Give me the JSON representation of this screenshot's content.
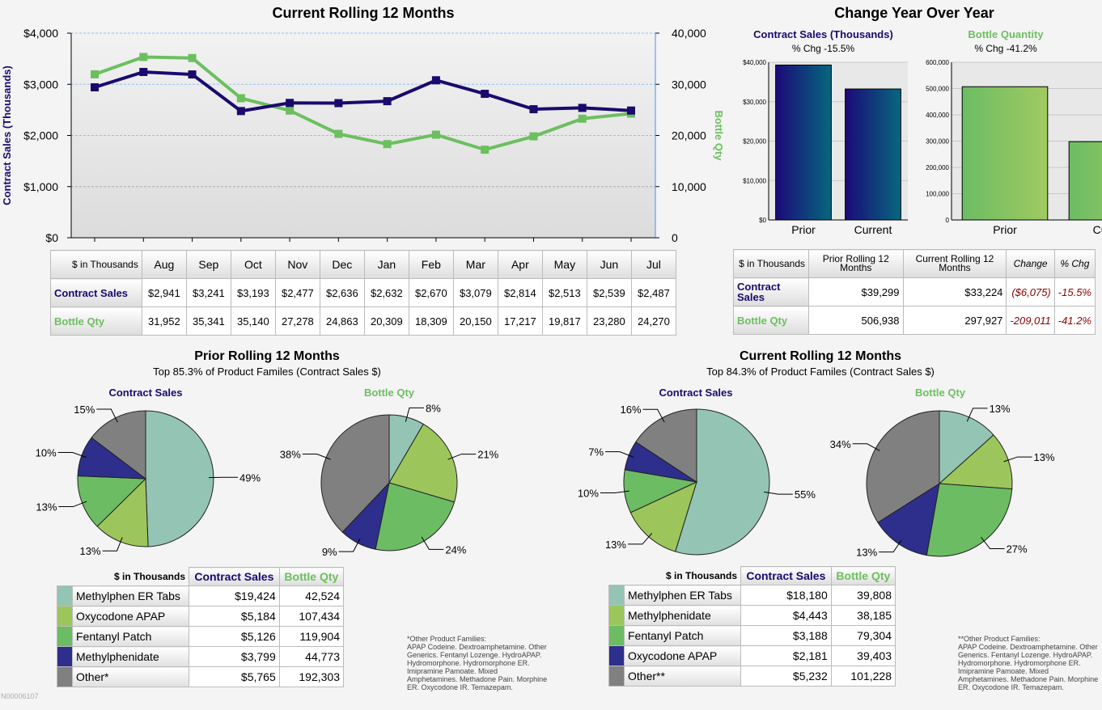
{
  "colors": {
    "contract": "#1a0a6e",
    "bottle": "#6cbf5f"
  },
  "rolling": {
    "title": "Current Rolling 12 Months",
    "ylabel_left": "Contract Sales (Thousands)",
    "ylabel_right": "Bottle Qty",
    "table_header": "$ in Thousands",
    "row1": "Contract Sales",
    "row2": "Bottle Qty",
    "months": [
      "Aug",
      "Sep",
      "Oct",
      "Nov",
      "Dec",
      "Jan",
      "Feb",
      "Mar",
      "Apr",
      "May",
      "Jun",
      "Jul"
    ],
    "contract_fmt": [
      "$2,941",
      "$3,241",
      "$3,193",
      "$2,477",
      "$2,636",
      "$2,632",
      "$2,670",
      "$3,079",
      "$2,814",
      "$2,513",
      "$2,539",
      "$2,487"
    ],
    "bottle_fmt": [
      "31,952",
      "35,341",
      "35,140",
      "27,278",
      "24,863",
      "20,309",
      "18,309",
      "20,150",
      "17,217",
      "19,817",
      "23,280",
      "24,270"
    ]
  },
  "chart_data": [
    {
      "type": "line",
      "title": "Current Rolling 12 Months",
      "x": [
        "Aug",
        "Sep",
        "Oct",
        "Nov",
        "Dec",
        "Jan",
        "Feb",
        "Mar",
        "Apr",
        "May",
        "Jun",
        "Jul"
      ],
      "ylabel": "Contract Sales (Thousands)",
      "y2label": "Bottle Qty",
      "ylim": [
        0,
        4000
      ],
      "y2lim": [
        0,
        40000
      ],
      "yticks": [
        "$0",
        "$1,000",
        "$2,000",
        "$3,000",
        "$4,000"
      ],
      "y2ticks": [
        "0",
        "10,000",
        "20,000",
        "30,000",
        "40,000"
      ],
      "grid": true,
      "series": [
        {
          "name": "Contract Sales",
          "axis": "left",
          "color": "#1a0a6e",
          "values": [
            2941,
            3241,
            3193,
            2477,
            2636,
            2632,
            2670,
            3079,
            2814,
            2513,
            2539,
            2487
          ]
        },
        {
          "name": "Bottle Qty",
          "axis": "right",
          "color": "#6cbf5f",
          "values": [
            31952,
            35341,
            35140,
            27278,
            24863,
            20309,
            18309,
            20150,
            17217,
            19817,
            23280,
            24270
          ]
        }
      ]
    },
    {
      "type": "bar",
      "title": "Contract Sales (Thousands)",
      "subtitle": "% Chg -15.5%",
      "categories": [
        "Prior",
        "Current"
      ],
      "values": [
        39299,
        33224
      ],
      "ylim": [
        0,
        40000
      ],
      "yticks": [
        "$0",
        "$10,000",
        "$20,000",
        "$30,000",
        "$40,000"
      ]
    },
    {
      "type": "bar",
      "title": "Bottle Quantity",
      "subtitle": "% Chg -41.2%",
      "categories": [
        "Prior",
        "Current"
      ],
      "values": [
        506938,
        297927
      ],
      "ylim": [
        0,
        600000
      ],
      "yticks": [
        "0",
        "100,000",
        "200,000",
        "300,000",
        "400,000",
        "500,000",
        "600,000"
      ]
    },
    {
      "type": "pie",
      "title": "Contract Sales",
      "group": "Prior Rolling 12 Months",
      "labels": [
        "Methylphen ER Tabs",
        "Oxycodone APAP",
        "Fentanyl Patch",
        "Methylphenidate",
        "Other*"
      ],
      "values": [
        19424,
        5184,
        5126,
        3799,
        5765
      ],
      "pct": [
        "49%",
        "13%",
        "13%",
        "10%",
        "15%"
      ]
    },
    {
      "type": "pie",
      "title": "Bottle Qty",
      "group": "Prior Rolling 12 Months",
      "labels": [
        "Methylphen ER Tabs",
        "Oxycodone APAP",
        "Fentanyl Patch",
        "Methylphenidate",
        "Other*"
      ],
      "values": [
        42524,
        107434,
        119904,
        44773,
        192303
      ],
      "pct": [
        "8%",
        "21%",
        "24%",
        "9%",
        "38%"
      ]
    },
    {
      "type": "pie",
      "title": "Contract Sales",
      "group": "Current Rolling 12 Months",
      "labels": [
        "Methylphen ER Tabs",
        "Methylphenidate",
        "Fentanyl Patch",
        "Oxycodone APAP",
        "Other**"
      ],
      "values": [
        18180,
        4443,
        3188,
        2181,
        5232
      ],
      "pct": [
        "55%",
        "13%",
        "10%",
        "7%",
        "16%"
      ]
    },
    {
      "type": "pie",
      "title": "Bottle Qty",
      "group": "Current Rolling 12 Months",
      "labels": [
        "Methylphen ER Tabs",
        "Methylphenidate",
        "Fentanyl Patch",
        "Oxycodone APAP",
        "Other**"
      ],
      "values": [
        39808,
        38185,
        79304,
        39403,
        101228
      ],
      "pct": [
        "13%",
        "13%",
        "27%",
        "13%",
        "34%"
      ]
    }
  ],
  "pie_colors": [
    "#94c4b4",
    "#9cc65c",
    "#6cbc64",
    "#2e2e8c",
    "#808080"
  ],
  "yoy": {
    "title": "Change Year Over Year",
    "cs_title": "Contract Sales (Thousands)",
    "cs_sub": "% Chg -15.5%",
    "bq_title": "Bottle Quantity",
    "bq_sub": "% Chg -41.2%",
    "table": {
      "header": "$ in Thousands",
      "cols": [
        "Prior Rolling 12 Months",
        "Current Rolling 12 Months",
        "Change",
        "% Chg"
      ],
      "rows": [
        {
          "label": "Contract Sales",
          "cells": [
            "$39,299",
            "$33,224",
            "($6,075)",
            "-15.5%"
          ]
        },
        {
          "label": "Bottle Qty",
          "cells": [
            "506,938",
            "297,927",
            "-209,011",
            "-41.2%"
          ]
        }
      ]
    }
  },
  "prior": {
    "title": "Prior Rolling 12 Months",
    "subtitle": "Top 85.3% of Product Familes (Contract Sales $)",
    "cs": "Contract Sales",
    "bq": "Bottle Qty",
    "table": {
      "header": "$ in Thousands",
      "cols": [
        "Contract Sales",
        "Bottle Qty"
      ],
      "rows": [
        [
          "Methylphen ER Tabs",
          "$19,424",
          "42,524"
        ],
        [
          "Oxycodone APAP",
          "$5,184",
          "107,434"
        ],
        [
          "Fentanyl Patch",
          "$5,126",
          "119,904"
        ],
        [
          "Methylphenidate",
          "$3,799",
          "44,773"
        ],
        [
          "Other*",
          "$5,765",
          "192,303"
        ]
      ]
    },
    "footnote_title": "*Other Product Families:",
    "footnote": "APAP Codeine. Dextroamphetamine. Other Generics. Fentanyl Lozenge. HydroAPAP. Hydromorphone. Hydromorphone ER. Imipramine Pamoate. Mixed Amphetamines. Methadone Pain. Morphine ER. Oxycodone IR. Temazepam."
  },
  "current": {
    "title": "Current Rolling 12 Months",
    "subtitle": "Top 84.3% of Product Familes (Contract Sales $)",
    "cs": "Contract Sales",
    "bq": "Bottle Qty",
    "table": {
      "header": "$ in Thousands",
      "cols": [
        "Contract Sales",
        "Bottle Qty"
      ],
      "rows": [
        [
          "Methylphen ER Tabs",
          "$18,180",
          "39,808"
        ],
        [
          "Methylphenidate",
          "$4,443",
          "38,185"
        ],
        [
          "Fentanyl Patch",
          "$3,188",
          "79,304"
        ],
        [
          "Oxycodone APAP",
          "$2,181",
          "39,403"
        ],
        [
          "Other**",
          "$5,232",
          "101,228"
        ]
      ]
    },
    "footnote_title": "**Other Product Families:",
    "footnote": "APAP Codeine. Dextroamphetamine. Other Generics. Fentanyl Lozenge. HydroAPAP. Hydromorphone. Hydromorphone ER. Imipramine Pamoate. Mixed Amphetamines. Methadone Pain. Morphine ER. Oxycodone IR. Temazepam."
  },
  "doc_id": "N00006107"
}
